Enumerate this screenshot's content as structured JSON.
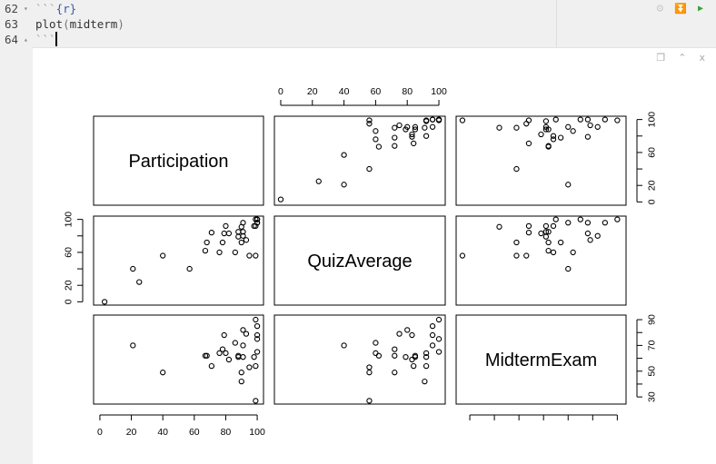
{
  "editor": {
    "lines": [
      {
        "number": "62",
        "fold": "▾",
        "ticks": "```",
        "chunk": "{r}"
      },
      {
        "number": "63",
        "code_fn": "plot",
        "code_paren_open": "(",
        "code_arg": "midterm",
        "code_paren_close": ")"
      },
      {
        "number": "64",
        "fold": "▴",
        "ticks": "```"
      }
    ],
    "chunk_tools": [
      {
        "icon": "gear-icon",
        "glyph": "⚙"
      },
      {
        "icon": "run-previous-chunks-icon",
        "glyph": "⏬"
      },
      {
        "icon": "run-chunk-icon",
        "glyph": "▶"
      }
    ]
  },
  "output": {
    "tools": [
      {
        "icon": "copy-plot-icon",
        "glyph": "❐"
      },
      {
        "icon": "collapse-output-icon",
        "glyph": "⌃"
      },
      {
        "icon": "close-output-icon",
        "glyph": "x"
      }
    ]
  },
  "colors": {
    "accent_green": "#3aa33a",
    "points": "#000000"
  },
  "chart_data": {
    "type": "scatter",
    "subtype": "pairs",
    "variables": [
      "Participation",
      "QuizAverage",
      "MidtermExam"
    ],
    "ranges": [
      [
        0,
        100
      ],
      [
        0,
        100
      ],
      [
        27,
        91
      ]
    ],
    "axes": {
      "top_col2": [
        "0",
        "20",
        "40",
        "60",
        "80",
        "100"
      ],
      "bottom_col1": [
        "0",
        "20",
        "40",
        "60",
        "80",
        "100"
      ],
      "right_row1": [
        "0",
        "20",
        "60",
        "100"
      ],
      "left_row2": [
        "0",
        "20",
        "60",
        "100"
      ],
      "right_row3": [
        "30",
        "50",
        "70",
        "90"
      ]
    },
    "observations": [
      [
        99,
        100,
        90
      ],
      [
        100,
        96,
        85
      ],
      [
        91,
        80,
        82
      ],
      [
        93,
        75,
        79
      ],
      [
        79,
        83,
        78
      ],
      [
        100,
        96,
        78
      ],
      [
        100,
        100,
        75
      ],
      [
        86,
        60,
        72
      ],
      [
        21,
        40,
        70
      ],
      [
        91,
        96,
        70
      ],
      [
        78,
        72,
        67
      ],
      [
        100,
        100,
        65
      ],
      [
        76,
        60,
        64
      ],
      [
        80,
        92,
        64
      ],
      [
        67,
        62,
        62
      ],
      [
        68,
        72,
        62
      ],
      [
        88,
        79,
        61
      ],
      [
        88,
        85,
        62
      ],
      [
        91,
        85,
        61
      ],
      [
        98,
        92,
        61
      ],
      [
        82,
        83,
        59
      ],
      [
        71,
        84,
        54
      ],
      [
        99,
        92,
        54
      ],
      [
        95,
        56,
        53
      ],
      [
        90,
        72,
        49
      ],
      [
        40,
        56,
        49
      ],
      [
        90,
        91,
        42
      ],
      [
        99,
        56,
        27
      ],
      [
        3,
        0,
        null
      ],
      [
        25,
        24,
        null
      ],
      [
        57,
        40,
        null
      ]
    ]
  }
}
